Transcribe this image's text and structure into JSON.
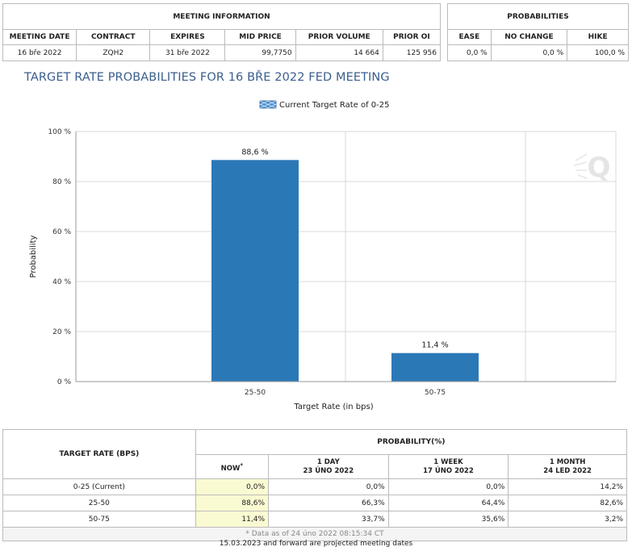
{
  "meeting_info": {
    "title": "MEETING INFORMATION",
    "headers": [
      "MEETING DATE",
      "CONTRACT",
      "EXPIRES",
      "MID PRICE",
      "PRIOR VOLUME",
      "PRIOR OI"
    ],
    "row": [
      "16 bře 2022",
      "ZQH2",
      "31 bře 2022",
      "99,7750",
      "14 664",
      "125 956"
    ]
  },
  "probabilities": {
    "title": "PROBABILITIES",
    "headers": [
      "EASE",
      "NO CHANGE",
      "HIKE"
    ],
    "row": [
      "0,0 %",
      "0,0 %",
      "100,0 %"
    ]
  },
  "chart_heading": "TARGET RATE PROBABILITIES FOR 16 BŘE 2022 FED MEETING",
  "chart_data": {
    "type": "bar",
    "categories": [
      "25-50",
      "50-75"
    ],
    "values": [
      88.6,
      11.4
    ],
    "value_labels": [
      "88,6 %",
      "11,4 %"
    ],
    "legend": "Current Target Rate of 0-25",
    "xlabel": "Target Rate (in bps)",
    "ylabel": "Probability",
    "ylim": [
      0,
      100
    ],
    "yticks": [
      0,
      20,
      40,
      60,
      80,
      100
    ],
    "ytick_labels": [
      "0 %",
      "20 %",
      "40 %",
      "60 %",
      "80 %",
      "100 %"
    ],
    "grid": true,
    "legend_position": "top-center",
    "bar_color": "#2b78b7",
    "watermark": "Q"
  },
  "lower_table": {
    "col_header": "TARGET RATE (BPS)",
    "group_header": "PROBABILITY(%)",
    "now_label": "NOW",
    "now_mark": "*",
    "periods": [
      {
        "label": "1 DAY",
        "date": "23 ÚNO 2022"
      },
      {
        "label": "1 WEEK",
        "date": "17 ÚNO 2022"
      },
      {
        "label": "1 MONTH",
        "date": "24 LED 2022"
      }
    ],
    "rows": [
      {
        "rate": "0-25 (Current)",
        "now": "0,0%",
        "d1": "0,0%",
        "w1": "0,0%",
        "m1": "14,2%"
      },
      {
        "rate": "25-50",
        "now": "88,6%",
        "d1": "66,3%",
        "w1": "64,4%",
        "m1": "82,6%"
      },
      {
        "rate": "50-75",
        "now": "11,4%",
        "d1": "33,7%",
        "w1": "35,6%",
        "m1": "3,2%"
      }
    ],
    "footnote": "* Data as of 24 úno 2022 08:15:34 CT"
  },
  "projected_note": "15.03.2023 and forward are projected meeting dates"
}
